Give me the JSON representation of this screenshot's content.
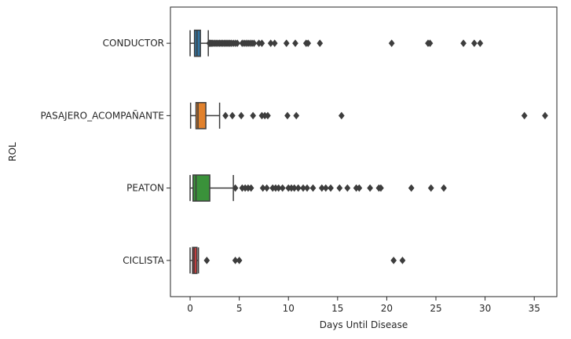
{
  "chart_data": {
    "type": "boxplot",
    "orientation": "horizontal",
    "title": "",
    "xlabel": "Days Until Disease",
    "ylabel": "ROL",
    "xlim": [
      -2,
      37.3
    ],
    "xticks": [
      0,
      5,
      10,
      15,
      20,
      25,
      30,
      35
    ],
    "grid": false,
    "categories": [
      "CONDUCTOR",
      "PASAJERO_ACOMPAÑANTE",
      "PEATON",
      "CICLISTA"
    ],
    "boxes": [
      {
        "category": "CONDUCTOR",
        "color": "#3274a1",
        "whisker_low": 0.0,
        "q1": 0.45,
        "median": 0.7,
        "q3": 1.05,
        "whisker_high": 1.85,
        "outliers": [
          1.95,
          2.05,
          2.15,
          2.25,
          2.4,
          2.55,
          2.7,
          2.85,
          3.0,
          3.15,
          3.3,
          3.45,
          3.6,
          3.75,
          3.9,
          4.05,
          4.2,
          4.4,
          4.6,
          4.8,
          5.3,
          5.5,
          5.7,
          5.9,
          6.1,
          6.3,
          6.5,
          7.0,
          7.3,
          8.2,
          8.6,
          9.8,
          10.7,
          11.8,
          12.0,
          13.2,
          20.5,
          24.2,
          24.4,
          27.8,
          28.9,
          29.5
        ]
      },
      {
        "category": "PASAJERO_ACOMPAÑANTE",
        "color": "#e1812c",
        "whisker_low": 0.05,
        "q1": 0.6,
        "median": 0.8,
        "q3": 1.6,
        "whisker_high": 3.0,
        "outliers": [
          3.6,
          4.3,
          5.2,
          6.4,
          7.3,
          7.6,
          7.9,
          9.9,
          10.8,
          15.4,
          34.0,
          36.1
        ]
      },
      {
        "category": "PEATON",
        "color": "#3a923a",
        "whisker_low": 0.0,
        "q1": 0.3,
        "median": 0.6,
        "q3": 2.0,
        "whisker_high": 4.4,
        "outliers": [
          4.6,
          5.3,
          5.6,
          5.9,
          6.2,
          7.4,
          7.8,
          8.4,
          8.7,
          9.0,
          9.4,
          10.0,
          10.3,
          10.6,
          11.0,
          11.5,
          11.9,
          12.5,
          13.4,
          13.8,
          14.3,
          15.2,
          16.0,
          16.9,
          17.2,
          18.3,
          19.2,
          19.4,
          22.5,
          24.5,
          25.8
        ]
      },
      {
        "category": "CICLISTA",
        "color": "#c03d3e",
        "whisker_low": 0.0,
        "q1": 0.25,
        "median": 0.4,
        "q3": 0.7,
        "whisker_high": 0.85,
        "outliers": [
          1.7,
          4.6,
          5.0,
          20.7,
          21.6
        ]
      }
    ]
  }
}
